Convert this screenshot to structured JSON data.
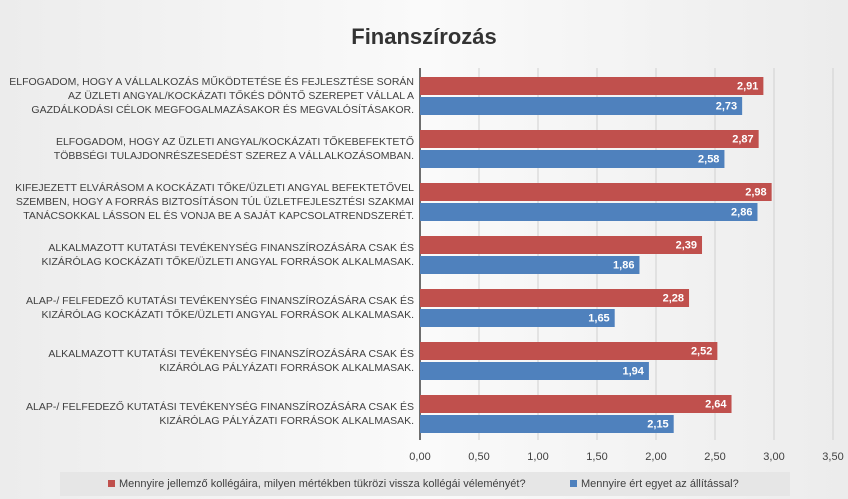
{
  "chart_data": {
    "type": "bar",
    "orientation": "horizontal",
    "title": "Finanszírozás",
    "categories": [
      "ELFOGADOM, HOGY A VÁLLALKOZÁS MŰKÖDTETÉSE ÉS FEJLESZTÉSE SORÁN AZ ÜZLETI ANGYAL/KOCKÁZATI TŐKÉS DÖNTŐ SZEREPET VÁLLAL A GAZDÁLKODÁSI CÉLOK MEGFOGALMAZÁSAKOR ÉS MEGVALÓSÍTÁSAKOR.",
      "ELFOGADOM, HOGY AZ ÜZLETI ANGYAL/KOCKÁZATI TŐKEBEFEKTETŐ TÖBBSÉGI TULAJDONRÉSZESEDÉST SZEREZ A VÁLLALKOZÁSOMBAN.",
      "KIFEJEZETT ELVÁRÁSOM A KOCKÁZATI TŐKE/ÜZLETI ANGYAL BEFEKTETŐVEL SZEMBEN, HOGY A FORRÁS BIZTOSÍTÁSON TÚL ÜZLETFEJLESZTÉSI SZAKMAI TANÁCSOKKAL LÁSSON EL ÉS VONJA BE A SAJÁT KAPCSOLATRENDSZERÉT.",
      "ALKALMAZOTT KUTATÁSI TEVÉKENYSÉG FINANSZÍROZÁSÁRA CSAK ÉS KIZÁRÓLAG KOCKÁZATI TŐKE/ÜZLETI ANGYAL FORRÁSOK ALKALMASAK.",
      "ALAP-/ FELFEDEZŐ KUTATÁSI TEVÉKENYSÉG FINANSZÍROZÁSÁRA CSAK ÉS KIZÁRÓLAG KOCKÁZATI TŐKE/ÜZLETI ANGYAL FORRÁSOK ALKALMASAK.",
      "ALKALMAZOTT KUTATÁSI TEVÉKENYSÉG FINANSZÍROZÁSÁRA CSAK ÉS KIZÁRÓLAG PÁLYÁZATI FORRÁSOK ALKALMASAK.",
      "ALAP-/ FELFEDEZŐ KUTATÁSI TEVÉKENYSÉG FINANSZÍROZÁSÁRA CSAK ÉS KIZÁRÓLAG PÁLYÁZATI FORRÁSOK ALKALMASAK."
    ],
    "series": [
      {
        "name": "Mennyire jellemző kollégáira, milyen mértékben tükrözi vissza kollégái véleményét?",
        "color": "#c0504d",
        "values": [
          2.91,
          2.87,
          2.98,
          2.39,
          2.28,
          2.52,
          2.64
        ],
        "value_labels": [
          "2,91",
          "2,87",
          "2,98",
          "2,39",
          "2,28",
          "2,52",
          "2,64"
        ]
      },
      {
        "name": "Mennyire ért egyet az állítással?",
        "color": "#4f81bd",
        "values": [
          2.73,
          2.58,
          2.86,
          1.86,
          1.65,
          1.94,
          2.15
        ],
        "value_labels": [
          "2,73",
          "2,58",
          "2,86",
          "1,86",
          "1,65",
          "1,94",
          "2,15"
        ]
      }
    ],
    "xlim": [
      0,
      3.5
    ],
    "xticks": [
      {
        "value": 0,
        "label": "0,00"
      },
      {
        "value": 0.5,
        "label": "0,50"
      },
      {
        "value": 1,
        "label": "1,00"
      },
      {
        "value": 1.5,
        "label": "1,50"
      },
      {
        "value": 2,
        "label": "2,00"
      },
      {
        "value": 2.5,
        "label": "2,50"
      },
      {
        "value": 3,
        "label": "3,00"
      },
      {
        "value": 3.5,
        "label": "3,50"
      }
    ],
    "grid": true,
    "legend": "bottom"
  }
}
